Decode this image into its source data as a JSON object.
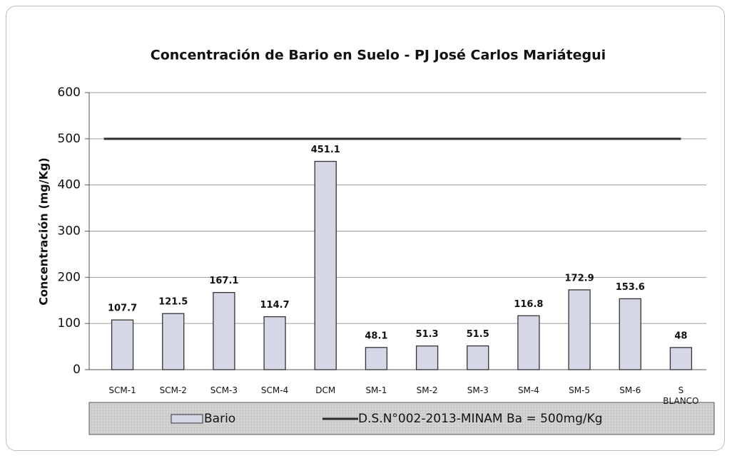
{
  "chart_data": {
    "type": "bar",
    "title": "Concentración de Bario en Suelo  -  PJ José Carlos Mariátegui",
    "y_label": "Concentración (mg/Kg)",
    "categories": [
      "SCM-1",
      "SCM-2",
      "SCM-3",
      "SCM-4",
      "DCM",
      "SM-1",
      "SM-2",
      "SM-3",
      "SM-4",
      "SM-5",
      "SM-6",
      "S BLANCO"
    ],
    "series": [
      {
        "name": "Bario",
        "type": "bar",
        "color": "#d6d7e6",
        "values": [
          107.7,
          121.5,
          167.1,
          114.7,
          451.1,
          48.1,
          51.3,
          51.5,
          116.8,
          172.9,
          153.6,
          48
        ]
      },
      {
        "name": "D.S.N°002-2013-MINAM Ba = 500mg/Kg",
        "type": "line",
        "color": "#2b2b2b",
        "values": [
          500,
          500,
          500,
          500,
          500,
          500,
          500,
          500,
          500,
          500,
          500,
          500
        ]
      }
    ],
    "ylim": [
      0,
      600
    ],
    "yticks": [
      0,
      100,
      200,
      300,
      400,
      500,
      600
    ],
    "grid": true,
    "legend": "bottom"
  }
}
